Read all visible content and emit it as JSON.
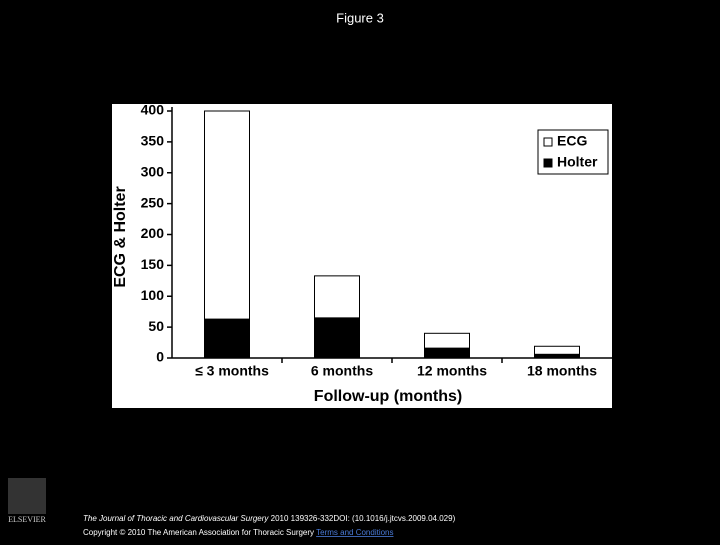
{
  "header": {
    "title": "Figure 3"
  },
  "chart_data": {
    "type": "stacked_bar",
    "xlabel": "Follow-up (months)",
    "ylabel": "ECG & Holter",
    "categories": [
      "≤ 3 months",
      "6 months",
      "12 months",
      "18 months"
    ],
    "series": [
      {
        "name": "ECG",
        "color": "#ffffff",
        "values": [
          337,
          68,
          24,
          13
        ]
      },
      {
        "name": "Holter",
        "color": "#000000",
        "values": [
          63,
          65,
          16,
          6
        ]
      }
    ],
    "ylim": [
      0,
      400
    ],
    "yticks": [
      0,
      50,
      100,
      150,
      200,
      250,
      300,
      350,
      400
    ],
    "legend": "upper right"
  },
  "footer": {
    "journal": "The Journal of Thoracic and Cardiovascular Surgery",
    "citation": "2010 139326-332DOI: (10.1016/j.jtcvs.2009.04.029)",
    "copyright": "Copyright © 2010 The American Association for Thoracic Surgery",
    "link": "Terms and Conditions",
    "logo": "ELSEVIER"
  }
}
